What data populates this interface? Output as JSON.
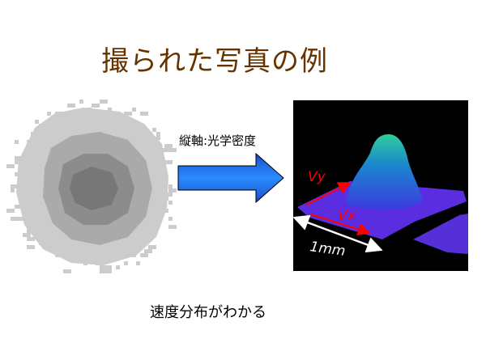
{
  "slide": {
    "title": "撮られた写真の例",
    "axis_note": "縦軸:光学密度",
    "caption": "速度分布がわかる"
  },
  "figure": {
    "vy_label": "Vy",
    "vx_label": "Vx",
    "scale_label": "1mm"
  },
  "colors": {
    "title": "#663300",
    "arrow_fill": "#0066ff",
    "velocity_arrows": "#ff0000",
    "scale_arrow": "#ffffff",
    "plot_background": "#000000"
  }
}
